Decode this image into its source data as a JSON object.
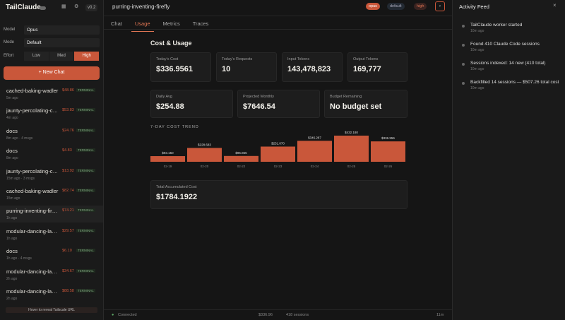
{
  "sidebar": {
    "brand": "TailClaude",
    "icons": [
      "grid-icon",
      "gear-icon"
    ],
    "version": "v0.2",
    "model_label": "Model",
    "model_value": "Opus",
    "mode_label": "Mode",
    "mode_value": "Default",
    "effort_label": "Effort",
    "effort_options": [
      "Low",
      "Med",
      "High"
    ],
    "effort_selected": "High",
    "new_chat": "+ New Chat",
    "sessions": [
      {
        "name": "cached-baking-wadler",
        "meta": "5m ago",
        "cost": "$48.86",
        "status": "TERMINAL"
      },
      {
        "name": "jaunty-percolating-cocke",
        "meta": "4m ago",
        "cost": "$53.83",
        "status": "TERMINAL"
      },
      {
        "name": "docs",
        "meta": "8m ago · 4 msgs",
        "cost": "$24.76",
        "status": "TERMINAL"
      },
      {
        "name": "docs",
        "meta": "8m ago",
        "cost": "$4.83",
        "status": "TERMINAL"
      },
      {
        "name": "jaunty-percolating-cocke",
        "meta": "15m ago · 3 msgs",
        "cost": "$13.92",
        "status": "TERMINAL"
      },
      {
        "name": "cached-baking-wadler",
        "meta": "15m ago",
        "cost": "$82.74",
        "status": "TERMINAL"
      },
      {
        "name": "purring-inventing-firefly",
        "meta": "1h ago",
        "cost": "$74.21",
        "status": "TERMINAL"
      },
      {
        "name": "modular-dancing-lamport",
        "meta": "1h ago",
        "cost": "$29.57",
        "status": "TERMINAL"
      },
      {
        "name": "docs",
        "meta": "1h ago · 4 msgs",
        "cost": "$6.10",
        "status": "TERMINAL"
      },
      {
        "name": "modular-dancing-lamport",
        "meta": "2h ago",
        "cost": "$34.67",
        "status": "TERMINAL"
      },
      {
        "name": "modular-dancing-lamport",
        "meta": "2h ago",
        "cost": "$88.58",
        "status": "TERMINAL"
      }
    ],
    "tailscale_hint": "Hover to reveal Tailscale URL"
  },
  "header": {
    "session_title": "purring-inventing-firefly",
    "badge_model": "opus",
    "badge_mode": "default",
    "badge_effort": "high",
    "arrow": "›"
  },
  "tabs": [
    "Chat",
    "Usage",
    "Metrics",
    "Traces"
  ],
  "active_tab": "Usage",
  "usage": {
    "title": "Cost & Usage",
    "cards_row1": [
      {
        "label": "Today's Cost",
        "value": "$336.9561"
      },
      {
        "label": "Today's Requests",
        "value": "10"
      },
      {
        "label": "Input Tokens",
        "value": "143,478,823"
      },
      {
        "label": "Output Tokens",
        "value": "169,777"
      }
    ],
    "cards_row2": [
      {
        "label": "Daily Avg",
        "value": "$254.88"
      },
      {
        "label": "Projected Monthly",
        "value": "$7646.54"
      },
      {
        "label": "Budget Remaining",
        "value": "No budget set"
      }
    ],
    "trend_title": "7-DAY COST TREND",
    "total_label": "Total Accumulated Cost",
    "total_value": "$1784.1922"
  },
  "chart_data": {
    "type": "bar",
    "title": "7-DAY COST TREND",
    "categories": [
      "02-19",
      "02-20",
      "02-22",
      "02-23",
      "02-24",
      "02-25",
      "02-26"
    ],
    "values": [
      93.15,
      228.683,
      95.865,
      251.07,
      346.287,
      432.18,
      336.956
    ],
    "value_labels": [
      "$93.150",
      "$228.683",
      "$95.865",
      "$251.070",
      "$346.287",
      "$432.180",
      "$336.956"
    ],
    "bar_color": "#c9573a"
  },
  "status_bar": {
    "connection": "Connected",
    "cost": "$336.96",
    "sessions": "418 sessions",
    "elapsed": "11m"
  },
  "activity": {
    "title": "Activity Feed",
    "close": "×",
    "items": [
      {
        "text": "TailClaude worker started",
        "time": "10m ago"
      },
      {
        "text": "Found 410 Claude Code sessions",
        "time": "10m ago"
      },
      {
        "text": "Sessions indexed: 14 new (410 total)",
        "time": "10m ago"
      },
      {
        "text": "Backfilled 14 sessions — $507.26 total cost",
        "time": "10m ago"
      }
    ]
  },
  "colors": {
    "accent": "#c9573a",
    "terminal": "#7aa07a"
  }
}
